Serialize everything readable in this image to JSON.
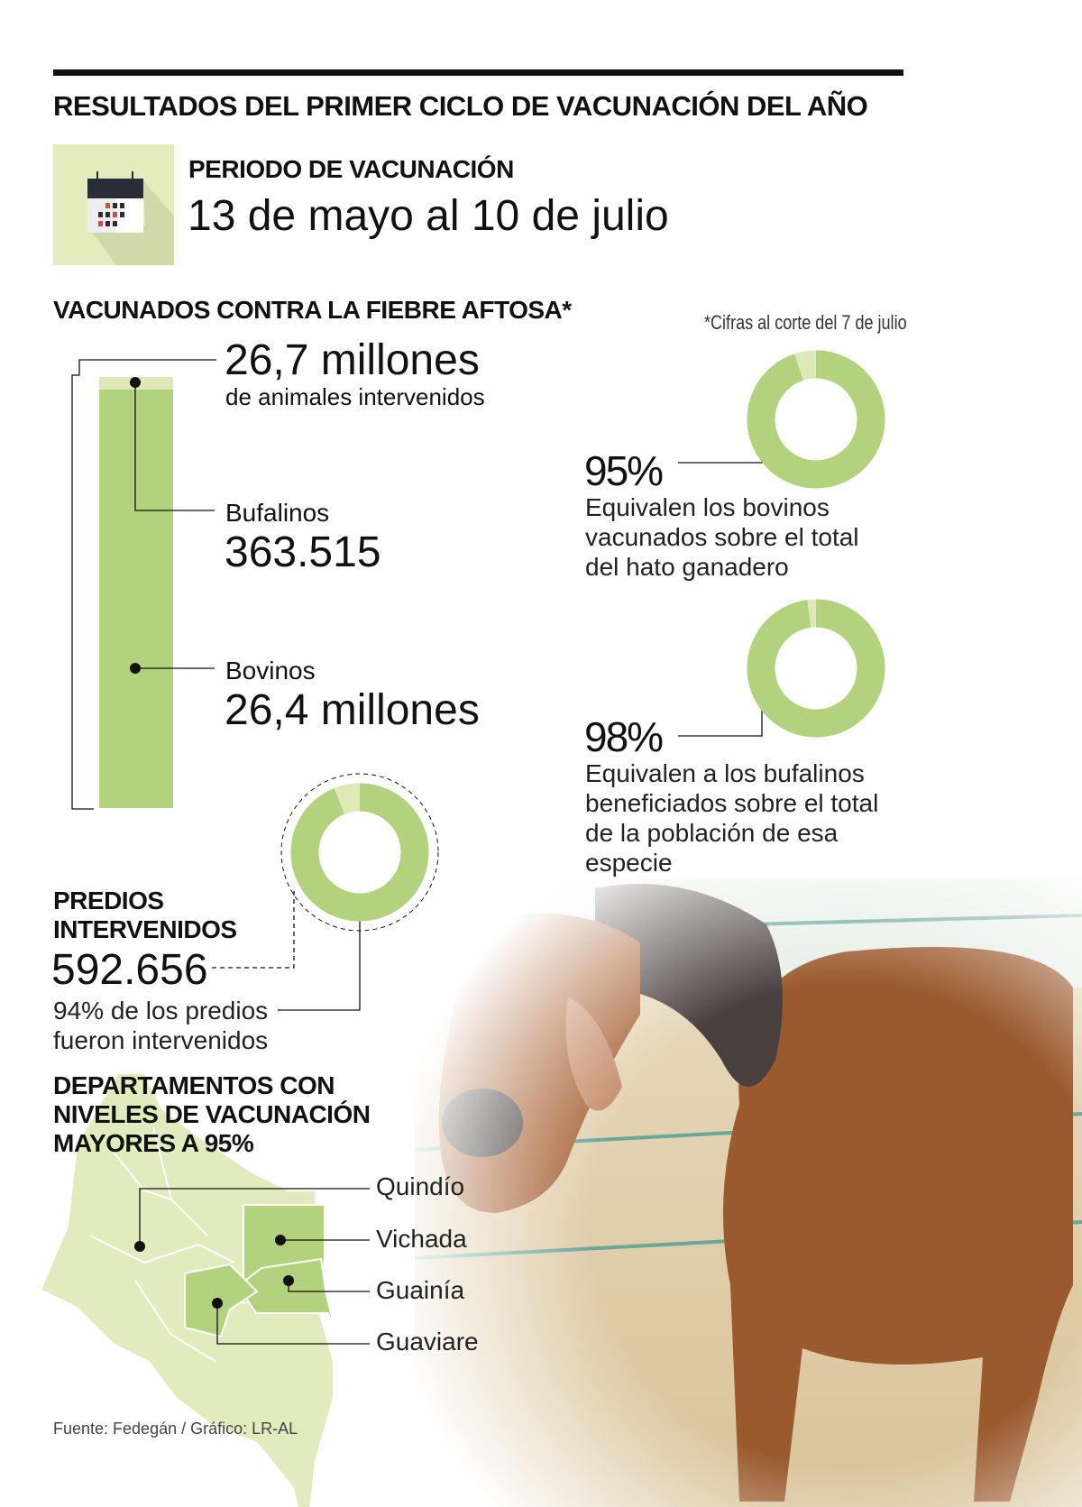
{
  "header": {
    "title": "RESULTADOS DEL PRIMER CICLO DE VACUNACIÓN DEL AÑO"
  },
  "period": {
    "label": "PERIODO DE VACUNACIÓN",
    "dates": "13 de mayo al 10 de julio",
    "icon": "calendar-icon"
  },
  "vaccinated": {
    "title": "VACUNADOS CONTRA LA FIEBRE AFTOSA*",
    "note": "*Cifras al corte del 7 de julio",
    "total_value": "26,7 millones",
    "total_label": "de animales intervenidos",
    "bufalinos_label": "Bufalinos",
    "bufalinos_value": "363.515",
    "bovinos_label": "Bovinos",
    "bovinos_value": "26,4 millones"
  },
  "donuts": [
    {
      "percent_label": "95%",
      "value": 95,
      "text": [
        "Equivalen los bovinos",
        "vacunados sobre el total",
        "del hato ganadero"
      ]
    },
    {
      "percent_label": "98%",
      "value": 98,
      "text": [
        "Equivalen a los bufalinos",
        "beneficiados sobre el total",
        "de la población de esa",
        "especie"
      ]
    },
    {
      "value": 94
    }
  ],
  "predios": {
    "title_lines": [
      "PREDIOS",
      "INTERVENIDOS"
    ],
    "value": "592.656",
    "text_lines": [
      "94% de los predios",
      "fueron intervenidos"
    ]
  },
  "departments": {
    "title_lines": [
      "DEPARTAMENTOS CON",
      "NIVELES DE VACUNACIÓN",
      "MAYORES A 95%"
    ],
    "items": [
      "Quindío",
      "Vichada",
      "Guainía",
      "Guaviare"
    ]
  },
  "source": "Fuente: Fedegán / Gráfico: LR-AL",
  "colors": {
    "green": "#b3d27e",
    "light_green": "#dfe9b8",
    "map_base": "#e1ebbd",
    "calendar_bg": "#e4ebbd"
  }
}
